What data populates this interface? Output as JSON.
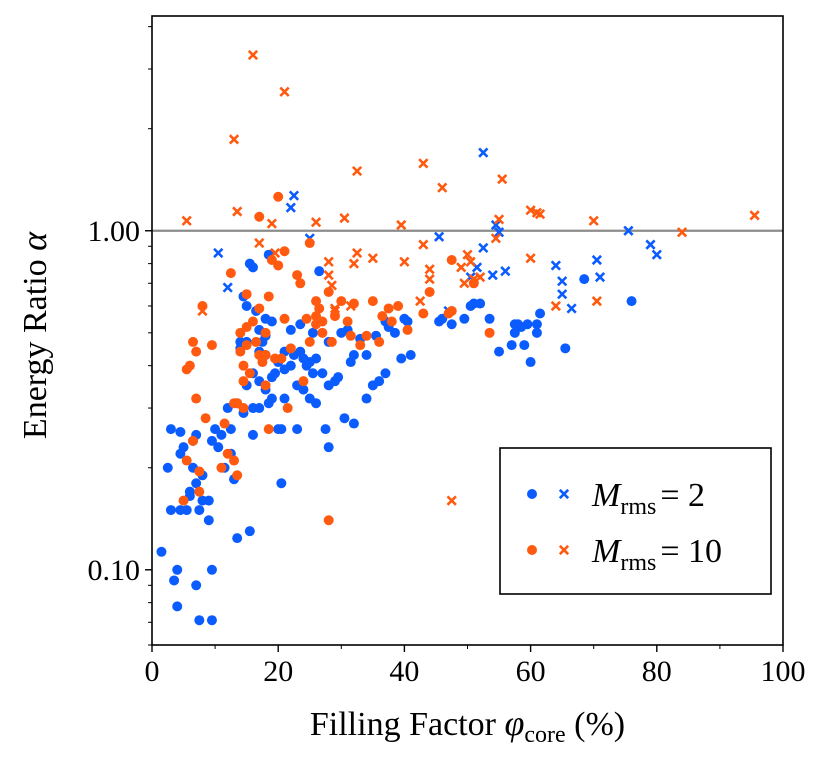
{
  "chart_data": {
    "type": "scatter",
    "xlabel": {
      "main": "Filling Factor ",
      "symbol": "φ",
      "sub": "core",
      "tail": " (%)"
    },
    "ylabel": {
      "main": "Energy Ratio ",
      "symbol": "α"
    },
    "xlim": [
      0,
      100
    ],
    "ylim": [
      0.06,
      4.3
    ],
    "yscale": "log",
    "grid": false,
    "legend_position": "lower-right",
    "x_ticks": [
      0,
      20,
      40,
      60,
      80,
      100
    ],
    "x_tick_labels": [
      "0",
      "20",
      "40",
      "60",
      "80",
      "100"
    ],
    "y_ticks": [
      0.1,
      1.0
    ],
    "y_tick_labels": [
      "0.10",
      "1.00"
    ],
    "reference_line": {
      "y": 1.0,
      "color": "#8c8c8c"
    },
    "colors": {
      "blue": "#0b5cff",
      "orange": "#ff5a0f",
      "ref": "#8c8c8c"
    },
    "legend": [
      {
        "color": "blue",
        "math_prefix": "M",
        "math_sub": "rms",
        "math_value": "= 2"
      },
      {
        "color": "orange",
        "math_prefix": "M",
        "math_sub": "rms",
        "math_value": "= 10"
      }
    ],
    "series": [
      {
        "color": "blue",
        "marker": "circle",
        "points": [
          [
            1.5,
            0.113
          ],
          [
            2.5,
            0.2
          ],
          [
            3,
            0.26
          ],
          [
            3,
            0.15
          ],
          [
            3.5,
            0.093
          ],
          [
            4,
            0.078
          ],
          [
            4,
            0.1
          ],
          [
            4.5,
            0.255
          ],
          [
            4.5,
            0.22
          ],
          [
            4.5,
            0.15
          ],
          [
            5,
            0.23
          ],
          [
            5.5,
            0.15
          ],
          [
            6,
            0.17
          ],
          [
            6,
            0.165
          ],
          [
            6.5,
            0.2
          ],
          [
            6.5,
            0.24
          ],
          [
            7,
            0.18
          ],
          [
            7,
            0.09
          ],
          [
            7,
            0.25
          ],
          [
            7.5,
            0.15
          ],
          [
            7.5,
            0.071
          ],
          [
            8,
            0.16
          ],
          [
            8,
            0.19
          ],
          [
            9,
            0.16
          ],
          [
            9,
            0.14
          ],
          [
            9.5,
            0.071
          ],
          [
            9.5,
            0.1
          ],
          [
            9.5,
            0.24
          ],
          [
            10,
            0.26
          ],
          [
            10.5,
            0.23
          ],
          [
            11,
            0.25
          ],
          [
            11.5,
            0.2
          ],
          [
            12,
            0.3
          ],
          [
            12.5,
            0.22
          ],
          [
            12.5,
            0.26
          ],
          [
            13,
            0.185
          ],
          [
            13.5,
            0.124
          ],
          [
            13.5,
            0.31
          ],
          [
            14,
            0.45
          ],
          [
            14,
            0.47
          ],
          [
            14.5,
            0.64
          ],
          [
            14.5,
            0.29
          ],
          [
            15,
            0.35
          ],
          [
            15,
            0.47
          ],
          [
            15,
            0.6
          ],
          [
            15.5,
            0.8
          ],
          [
            15.5,
            0.13
          ],
          [
            16,
            0.25
          ],
          [
            16,
            0.3
          ],
          [
            16,
            0.38
          ],
          [
            16,
            0.78
          ],
          [
            16.5,
            0.58
          ],
          [
            17,
            0.36
          ],
          [
            17,
            0.44
          ],
          [
            17,
            0.51
          ],
          [
            17,
            0.3
          ],
          [
            17.5,
            0.47
          ],
          [
            18,
            0.34
          ],
          [
            18,
            0.43
          ],
          [
            18,
            0.49
          ],
          [
            18,
            0.55
          ],
          [
            18.5,
            0.85
          ],
          [
            18.5,
            0.31
          ],
          [
            19,
            0.32
          ],
          [
            19,
            0.37
          ],
          [
            19,
            0.54
          ],
          [
            19.5,
            0.38
          ],
          [
            20,
            0.41
          ],
          [
            20,
            0.26
          ],
          [
            20.5,
            0.18
          ],
          [
            20.5,
            0.26
          ],
          [
            21,
            0.39
          ],
          [
            21,
            0.32
          ],
          [
            21,
            0.44
          ],
          [
            22,
            0.4
          ],
          [
            22,
            0.51
          ],
          [
            22.5,
            0.43
          ],
          [
            23,
            0.26
          ],
          [
            23,
            0.35
          ],
          [
            23.5,
            0.44
          ],
          [
            23.5,
            0.53
          ],
          [
            24,
            0.34
          ],
          [
            24,
            0.42
          ],
          [
            24.5,
            0.4
          ],
          [
            25,
            0.41
          ],
          [
            25,
            0.32
          ],
          [
            25.5,
            0.5
          ],
          [
            25.5,
            0.38
          ],
          [
            26,
            0.31
          ],
          [
            26,
            0.42
          ],
          [
            26.5,
            0.76
          ],
          [
            27,
            0.38
          ],
          [
            27.5,
            0.26
          ],
          [
            28,
            0.35
          ],
          [
            28,
            0.23
          ],
          [
            28,
            0.47
          ],
          [
            29,
            0.36
          ],
          [
            29.5,
            0.37
          ],
          [
            30,
            0.5
          ],
          [
            30.5,
            0.28
          ],
          [
            31,
            0.51
          ],
          [
            31.5,
            0.41
          ],
          [
            32,
            0.27
          ],
          [
            32,
            0.43
          ],
          [
            33,
            0.48
          ],
          [
            34,
            0.32
          ],
          [
            34,
            0.43
          ],
          [
            35,
            0.35
          ],
          [
            35.5,
            0.49
          ],
          [
            36,
            0.36
          ],
          [
            37,
            0.38
          ],
          [
            37,
            0.54
          ],
          [
            37.5,
            0.52
          ],
          [
            38.5,
            0.5
          ],
          [
            39.5,
            0.42
          ],
          [
            40,
            0.55
          ],
          [
            40.5,
            0.54
          ],
          [
            41,
            0.43
          ],
          [
            45.5,
            0.54
          ],
          [
            46,
            0.55
          ],
          [
            47.5,
            0.53
          ],
          [
            49.5,
            0.55
          ],
          [
            50.5,
            0.6
          ],
          [
            51,
            0.61
          ],
          [
            52,
            0.61
          ],
          [
            53.5,
            0.55
          ],
          [
            55,
            0.44
          ],
          [
            57,
            0.46
          ],
          [
            57.5,
            0.5
          ],
          [
            57.5,
            0.53
          ],
          [
            58,
            0.53
          ],
          [
            58.5,
            0.52
          ],
          [
            59,
            0.46
          ],
          [
            59.5,
            0.53
          ],
          [
            60,
            0.41
          ],
          [
            61,
            0.53
          ],
          [
            61,
            0.5
          ],
          [
            61.5,
            0.57
          ],
          [
            65.5,
            0.45
          ],
          [
            68.5,
            0.72
          ],
          [
            76,
            0.62
          ]
        ]
      },
      {
        "color": "blue",
        "marker": "x",
        "points": [
          [
            10.5,
            0.86
          ],
          [
            12,
            0.68
          ],
          [
            22,
            1.17
          ],
          [
            22.5,
            1.27
          ],
          [
            25,
            0.95
          ],
          [
            45.5,
            0.96
          ],
          [
            47,
            0.58
          ],
          [
            50.5,
            0.73
          ],
          [
            51.5,
            0.78
          ],
          [
            52.5,
            0.89
          ],
          [
            52.5,
            1.7
          ],
          [
            54,
            0.74
          ],
          [
            54.5,
            1.04
          ],
          [
            55,
            0.99
          ],
          [
            56,
            0.76
          ],
          [
            64,
            0.79
          ],
          [
            65,
            0.71
          ],
          [
            65,
            0.65
          ],
          [
            66.5,
            0.59
          ],
          [
            70.5,
            0.82
          ],
          [
            71,
            0.73
          ],
          [
            75.5,
            1.0
          ],
          [
            79,
            0.91
          ],
          [
            80,
            0.85
          ]
        ]
      },
      {
        "color": "orange",
        "marker": "circle",
        "points": [
          [
            5,
            0.16
          ],
          [
            5.5,
            0.21
          ],
          [
            5.5,
            0.39
          ],
          [
            6,
            0.4
          ],
          [
            6.5,
            0.24
          ],
          [
            6.5,
            0.47
          ],
          [
            7,
            0.32
          ],
          [
            7,
            0.44
          ],
          [
            7.5,
            0.17
          ],
          [
            7.5,
            0.195
          ],
          [
            8,
            0.6
          ],
          [
            8.5,
            0.28
          ],
          [
            9.5,
            0.46
          ],
          [
            11,
            0.2
          ],
          [
            11.5,
            0.27
          ],
          [
            12,
            0.22
          ],
          [
            12.5,
            0.75
          ],
          [
            13,
            0.31
          ],
          [
            13,
            0.21
          ],
          [
            13.5,
            0.31
          ],
          [
            13.5,
            0.19
          ],
          [
            14,
            0.5
          ],
          [
            14,
            0.44
          ],
          [
            14.5,
            0.4
          ],
          [
            14.5,
            0.36
          ],
          [
            14.5,
            0.3
          ],
          [
            15,
            0.65
          ],
          [
            15,
            0.52
          ],
          [
            15,
            0.46
          ],
          [
            15.5,
            0.38
          ],
          [
            16,
            0.54
          ],
          [
            16.5,
            0.47
          ],
          [
            17,
            1.1
          ],
          [
            17,
            0.59
          ],
          [
            17,
            0.43
          ],
          [
            17.5,
            0.41
          ],
          [
            18,
            0.5
          ],
          [
            18,
            0.43
          ],
          [
            18,
            0.35
          ],
          [
            18.5,
            0.64
          ],
          [
            18.5,
            0.26
          ],
          [
            19,
            0.82
          ],
          [
            19.5,
            0.42
          ],
          [
            20,
            0.79
          ],
          [
            20,
            1.26
          ],
          [
            20.5,
            0.42
          ],
          [
            21,
            0.87
          ],
          [
            21,
            0.55
          ],
          [
            21.5,
            0.3
          ],
          [
            22,
            0.45
          ],
          [
            23,
            0.74
          ],
          [
            23.5,
            0.7
          ],
          [
            24,
            0.36
          ],
          [
            24.5,
            0.55
          ],
          [
            25,
            0.92
          ],
          [
            25,
            0.47
          ],
          [
            26,
            0.56
          ],
          [
            26,
            0.53
          ],
          [
            26,
            0.62
          ],
          [
            26.5,
            0.59
          ],
          [
            27,
            0.54
          ],
          [
            27,
            0.5
          ],
          [
            28,
            0.14
          ],
          [
            28,
            0.66
          ],
          [
            28.5,
            0.47
          ],
          [
            29,
            0.56
          ],
          [
            30,
            0.62
          ],
          [
            31,
            0.54
          ],
          [
            31.5,
            0.49
          ],
          [
            32,
            0.61
          ],
          [
            33,
            0.46
          ],
          [
            34,
            0.49
          ],
          [
            35,
            0.62
          ],
          [
            36,
            0.47
          ],
          [
            36.5,
            0.56
          ],
          [
            37.5,
            0.59
          ],
          [
            38,
            0.54
          ],
          [
            39,
            0.6
          ],
          [
            40.5,
            0.51
          ],
          [
            43,
            0.57
          ],
          [
            44,
            0.66
          ],
          [
            47,
            0.57
          ],
          [
            47.5,
            0.58
          ],
          [
            47.5,
            0.82
          ],
          [
            51,
            0.7
          ],
          [
            53.5,
            0.5
          ]
        ]
      },
      {
        "color": "orange",
        "marker": "x",
        "points": [
          [
            5.5,
            1.07
          ],
          [
            8,
            0.58
          ],
          [
            13,
            1.86
          ],
          [
            13.5,
            1.14
          ],
          [
            16,
            3.3
          ],
          [
            17,
            0.92
          ],
          [
            19,
            1.05
          ],
          [
            19.5,
            0.86
          ],
          [
            21,
            2.57
          ],
          [
            26,
            1.06
          ],
          [
            28,
            0.74
          ],
          [
            28,
            0.81
          ],
          [
            28.5,
            0.69
          ],
          [
            29,
            0.59
          ],
          [
            29,
            0.58
          ],
          [
            30.5,
            1.09
          ],
          [
            31.5,
            0.6
          ],
          [
            32,
            0.8
          ],
          [
            32.5,
            0.86
          ],
          [
            32.5,
            1.5
          ],
          [
            35,
            0.83
          ],
          [
            39.5,
            1.04
          ],
          [
            40,
            0.81
          ],
          [
            42.5,
            0.62
          ],
          [
            43,
            1.58
          ],
          [
            43,
            0.91
          ],
          [
            44,
            0.77
          ],
          [
            44,
            0.72
          ],
          [
            46,
            1.34
          ],
          [
            47.5,
            0.16
          ],
          [
            49,
            0.78
          ],
          [
            49.5,
            0.7
          ],
          [
            50,
            0.85
          ],
          [
            50.5,
            0.81
          ],
          [
            51,
            0.72
          ],
          [
            52,
            0.73
          ],
          [
            54.5,
            0.95
          ],
          [
            55,
            1.08
          ],
          [
            55.5,
            1.42
          ],
          [
            60,
            1.15
          ],
          [
            60,
            0.83
          ],
          [
            61,
            1.13
          ],
          [
            61.5,
            1.12
          ],
          [
            64,
            0.6
          ],
          [
            70,
            1.07
          ],
          [
            70.5,
            0.62
          ],
          [
            84,
            0.99
          ],
          [
            95.5,
            1.11
          ]
        ]
      }
    ]
  }
}
